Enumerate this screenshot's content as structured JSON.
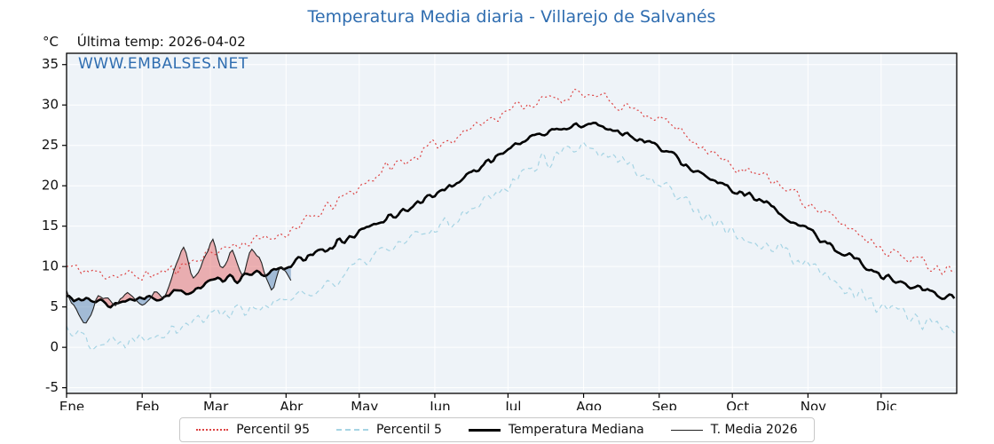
{
  "title": "Temperatura Media diaria - Villarejo de Salvanés",
  "watermark": "WWW.EMBALSES.NET",
  "header": {
    "unit": "°C",
    "last_temp_label": "Última temp: 2026-04-02"
  },
  "legend": {
    "items": [
      {
        "label": "Percentil 95"
      },
      {
        "label": "Percentil 5"
      },
      {
        "label": "Temperatura Mediana"
      },
      {
        "label": "T. Media 2026"
      }
    ]
  },
  "colors": {
    "title": "#2f6db0",
    "p95": "#dd4444",
    "p5": "#a6d4e4",
    "median": "#000000",
    "t2026": "#222222",
    "fill_above": "rgba(226,88,88,0.45)",
    "fill_below": "rgba(100,140,185,0.55)",
    "plot_bg": "#eef3f8",
    "grid": "#ffffff",
    "frame": "#000000"
  },
  "chart_data": {
    "type": "line",
    "title": "Temperatura Media diaria - Villarejo de Salvanés",
    "xlabel": "",
    "ylabel": "°C",
    "ylim": [
      -5,
      35
    ],
    "grid": true,
    "legend_position": "bottom",
    "days_in_year": 365,
    "x_months": [
      "Ene",
      "Feb",
      "Mar",
      "Abr",
      "May",
      "Jun",
      "Jul",
      "Ago",
      "Sep",
      "Oct",
      "Nov",
      "Dic"
    ],
    "month_start_days": [
      0,
      31,
      59,
      90,
      120,
      151,
      181,
      212,
      243,
      273,
      304,
      334
    ],
    "y_ticks": [
      -5,
      0,
      5,
      10,
      15,
      20,
      25,
      30,
      35
    ],
    "series": [
      {
        "name": "Percentil 95",
        "color": "#dd4444",
        "style": "dotted",
        "x_days": [
          0,
          10,
          20,
          30,
          40,
          50,
          60,
          70,
          80,
          90,
          100,
          110,
          120,
          130,
          140,
          150,
          160,
          170,
          180,
          190,
          200,
          210,
          220,
          230,
          240,
          250,
          260,
          270,
          280,
          290,
          300,
          310,
          320,
          330,
          340,
          350,
          360
        ],
        "values": [
          10.0,
          9.3,
          9.0,
          8.8,
          9.2,
          10.5,
          11.8,
          12.8,
          13.2,
          14.3,
          15.8,
          17.8,
          19.8,
          22.0,
          23.2,
          24.8,
          26.3,
          27.8,
          29.3,
          30.3,
          30.8,
          31.3,
          30.8,
          29.8,
          28.8,
          27.2,
          25.2,
          22.8,
          21.6,
          20.6,
          18.8,
          16.6,
          15.0,
          13.2,
          11.6,
          10.6,
          9.8
        ]
      },
      {
        "name": "Percentil 5",
        "color": "#a6d4e4",
        "style": "dashed",
        "x_days": [
          0,
          10,
          20,
          30,
          40,
          50,
          60,
          70,
          80,
          90,
          100,
          110,
          120,
          130,
          140,
          150,
          160,
          170,
          180,
          190,
          200,
          210,
          220,
          230,
          240,
          250,
          260,
          270,
          280,
          290,
          300,
          310,
          320,
          330,
          340,
          350,
          360
        ],
        "values": [
          2.6,
          0.8,
          0.6,
          1.6,
          2.2,
          3.0,
          4.2,
          4.8,
          5.2,
          5.8,
          6.8,
          8.3,
          10.2,
          12.0,
          13.0,
          14.6,
          16.2,
          18.2,
          20.2,
          22.2,
          23.6,
          24.4,
          23.8,
          22.8,
          21.0,
          19.0,
          16.8,
          14.4,
          13.4,
          12.4,
          10.8,
          8.8,
          7.2,
          5.4,
          4.4,
          3.4,
          2.6
        ]
      },
      {
        "name": "Temperatura Mediana",
        "color": "#000000",
        "style": "solid-thick",
        "x_days": [
          0,
          10,
          20,
          30,
          40,
          50,
          60,
          70,
          80,
          90,
          100,
          110,
          120,
          130,
          140,
          150,
          160,
          170,
          180,
          190,
          200,
          210,
          220,
          230,
          240,
          250,
          260,
          270,
          280,
          290,
          300,
          310,
          320,
          330,
          340,
          350,
          360
        ],
        "values": [
          6.2,
          5.6,
          5.4,
          5.8,
          6.2,
          7.0,
          8.0,
          8.6,
          9.0,
          10.0,
          11.2,
          12.8,
          14.2,
          15.8,
          17.2,
          18.8,
          20.4,
          22.4,
          24.4,
          26.0,
          26.8,
          27.6,
          27.4,
          26.4,
          25.2,
          23.4,
          21.4,
          19.8,
          18.6,
          17.2,
          15.2,
          13.2,
          11.6,
          9.6,
          8.2,
          7.2,
          6.4
        ]
      },
      {
        "name": "T. Media 2026",
        "color": "#222222",
        "style": "solid-thin",
        "x_days": [
          0,
          4,
          8,
          12,
          16,
          20,
          24,
          28,
          32,
          36,
          40,
          44,
          48,
          52,
          56,
          60,
          64,
          68,
          72,
          76,
          80,
          84,
          88,
          92
        ],
        "values": [
          7.0,
          4.5,
          2.6,
          5.8,
          6.4,
          5.0,
          6.8,
          5.8,
          5.4,
          7.0,
          6.2,
          9.0,
          12.8,
          8.0,
          10.8,
          13.8,
          9.0,
          12.4,
          8.2,
          12.6,
          10.6,
          6.8,
          10.0,
          8.6
        ]
      }
    ]
  }
}
